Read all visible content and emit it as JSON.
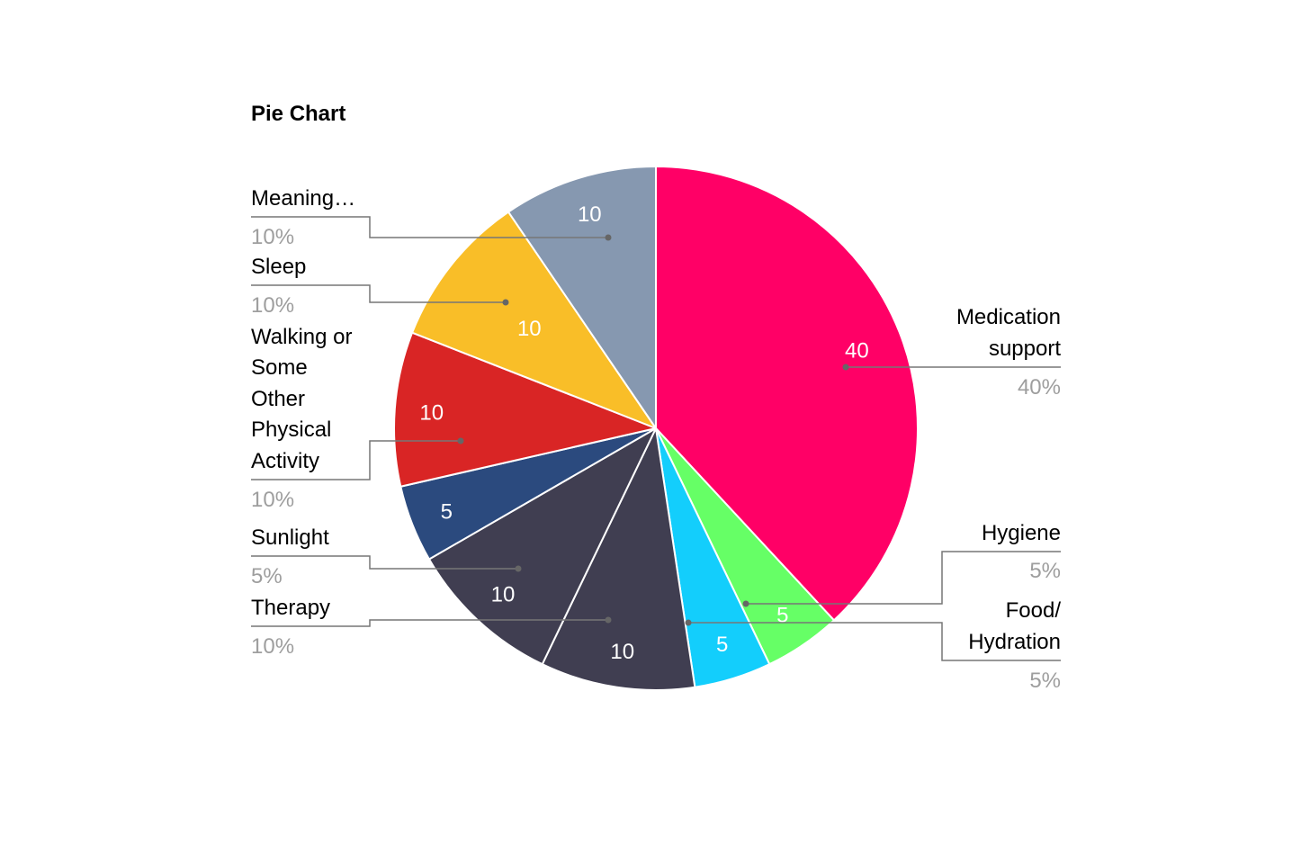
{
  "chart_data": {
    "type": "pie",
    "title": "Pie Chart",
    "legend": "labels beside slices",
    "slices": [
      {
        "name": "Medication support",
        "value": 40,
        "value_label": "40",
        "percent_label": "40%",
        "color": "#ff0066"
      },
      {
        "name": "Hygiene",
        "value": 5,
        "value_label": "5",
        "percent_label": "5%",
        "color": "#66ff66"
      },
      {
        "name": "Food/ Hydration",
        "value": 5,
        "value_label": "5",
        "percent_label": "5%",
        "color": "#13cefc"
      },
      {
        "name": "",
        "value": 10,
        "value_label": "10",
        "percent_label": "",
        "color": "#403e51"
      },
      {
        "name": "Therapy",
        "value": 10,
        "value_label": "10",
        "percent_label": "10%",
        "color": "#403e51"
      },
      {
        "name": "Sunlight",
        "value": 5,
        "value_label": "5",
        "percent_label": "5%",
        "color": "#2b4a7e"
      },
      {
        "name": "Walking or Some Other Physical Activity",
        "value": 10,
        "value_label": "10",
        "percent_label": "10%",
        "color": "#d92525"
      },
      {
        "name": "Sleep",
        "value": 10,
        "value_label": "10",
        "percent_label": "10%",
        "color": "#f9be28"
      },
      {
        "name": "Meaning…",
        "value": 10,
        "value_label": "10",
        "percent_label": "10%",
        "color": "#8698b0"
      }
    ]
  }
}
